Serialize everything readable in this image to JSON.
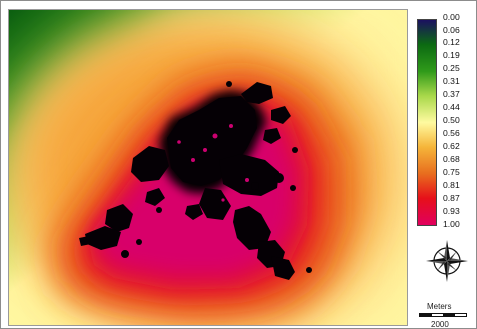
{
  "legend": {
    "labels": [
      "0.00",
      "0.06",
      "0.12",
      "0.19",
      "0.25",
      "0.31",
      "0.37",
      "0.44",
      "0.50",
      "0.56",
      "0.62",
      "0.68",
      "0.75",
      "0.81",
      "0.87",
      "0.93",
      "1.00"
    ],
    "colors": {
      "v0_00": "#1b1060",
      "v0_12": "#0c6a12",
      "v0_25": "#2f9a1a",
      "v0_37": "#a8d84a",
      "v0_50": "#fffaa0",
      "v0_62": "#f5b53a",
      "v0_75": "#e86d1e",
      "v0_87": "#e6101a",
      "v1_00": "#e1005e"
    }
  },
  "map": {
    "urban_color": "#050005",
    "fringe_color": "#cc0070"
  },
  "north_arrow": {
    "icon": "compass-rose-icon"
  },
  "scale": {
    "unit": "Meters",
    "value": "2000"
  }
}
